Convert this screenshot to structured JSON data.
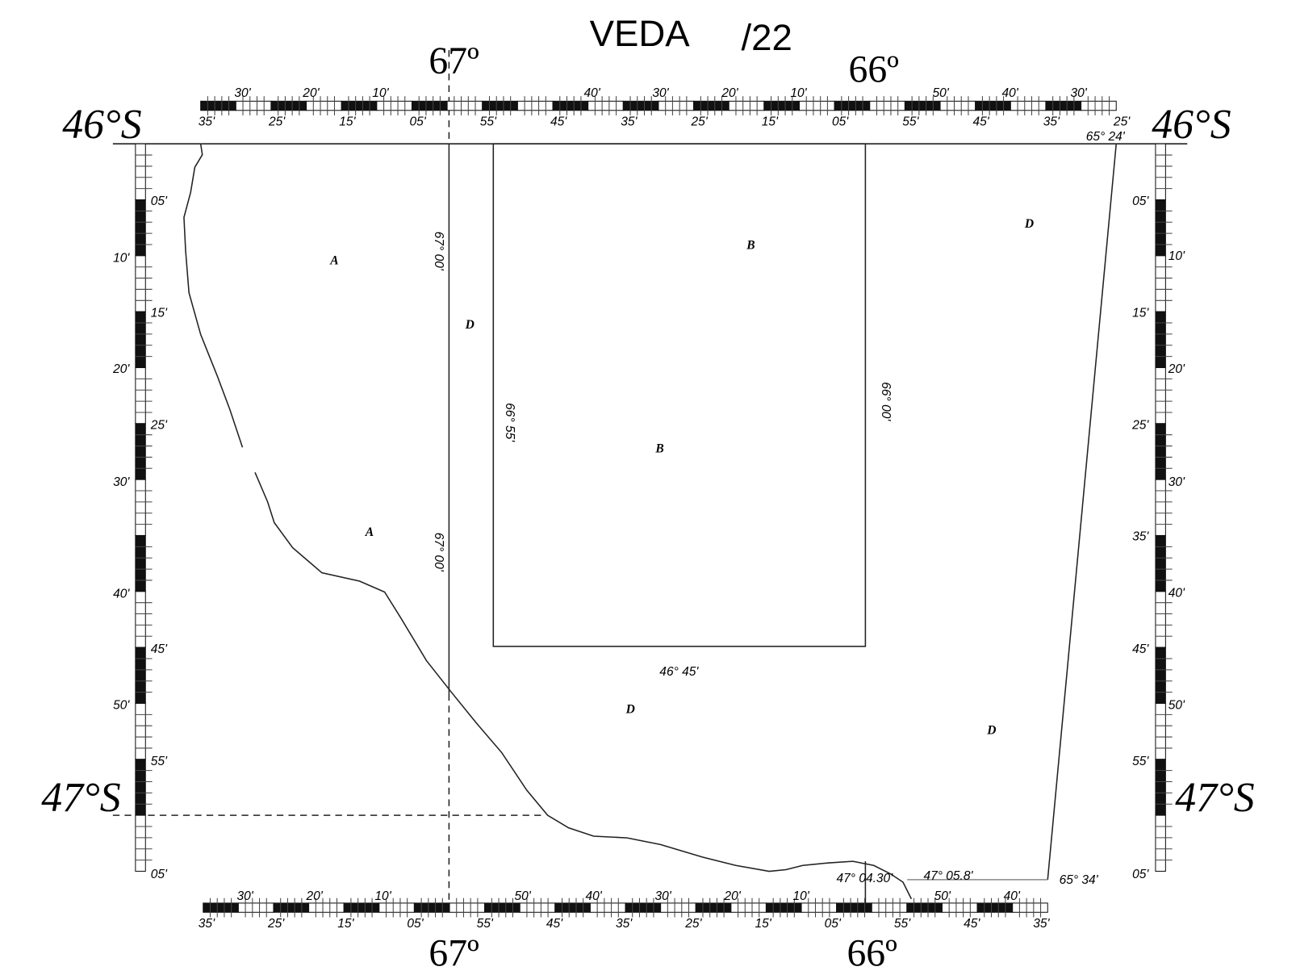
{
  "title": {
    "name": "VEDA",
    "number": "/22"
  },
  "top_longitudes": [
    "67º",
    "66º"
  ],
  "bottom_longitudes": [
    "67º",
    "66º"
  ],
  "latitudes": {
    "left": [
      "46°S",
      "47°S"
    ],
    "right": [
      "46°S",
      "47°S"
    ]
  },
  "top_scale": {
    "upper_labels": [
      "30'",
      "20'",
      "10'",
      "40'",
      "30'",
      "20'",
      "10'",
      "50'",
      "40'",
      "30'"
    ],
    "lower_labels": [
      "35'",
      "25'",
      "15'",
      "05'",
      "55'",
      "45'",
      "35'",
      "25'",
      "15'",
      "05'",
      "55'",
      "45'",
      "35'",
      "25'"
    ],
    "end_label": "65° 24'"
  },
  "bottom_scale": {
    "upper_labels": [
      "30'",
      "20'",
      "10'",
      "50'",
      "40'",
      "30'",
      "20'",
      "10'",
      "50'",
      "40'"
    ],
    "lower_labels": [
      "35'",
      "25'",
      "15'",
      "05'",
      "55'",
      "45'",
      "35'",
      "25'",
      "15'",
      "05'",
      "55'",
      "45'",
      "35'"
    ]
  },
  "left_scale": {
    "labels": [
      "05'",
      "10'",
      "15'",
      "20'",
      "25'",
      "30'",
      "40'",
      "45'",
      "50'",
      "55'",
      "05'"
    ]
  },
  "right_scale": {
    "labels": [
      "05'",
      "10'",
      "15'",
      "20'",
      "25'",
      "30'",
      "35'",
      "40'",
      "45'",
      "50'",
      "55'",
      "05'"
    ]
  },
  "map_labels": [
    "A",
    "A",
    "D",
    "B",
    "B",
    "D",
    "D",
    "D"
  ],
  "coordinate_labels": [
    "67° 00'",
    "67° 00'",
    "66° 55'",
    "66° 00'",
    "46° 45'",
    "47° 04.30'",
    "47° 05.8'",
    "65° 34'"
  ]
}
